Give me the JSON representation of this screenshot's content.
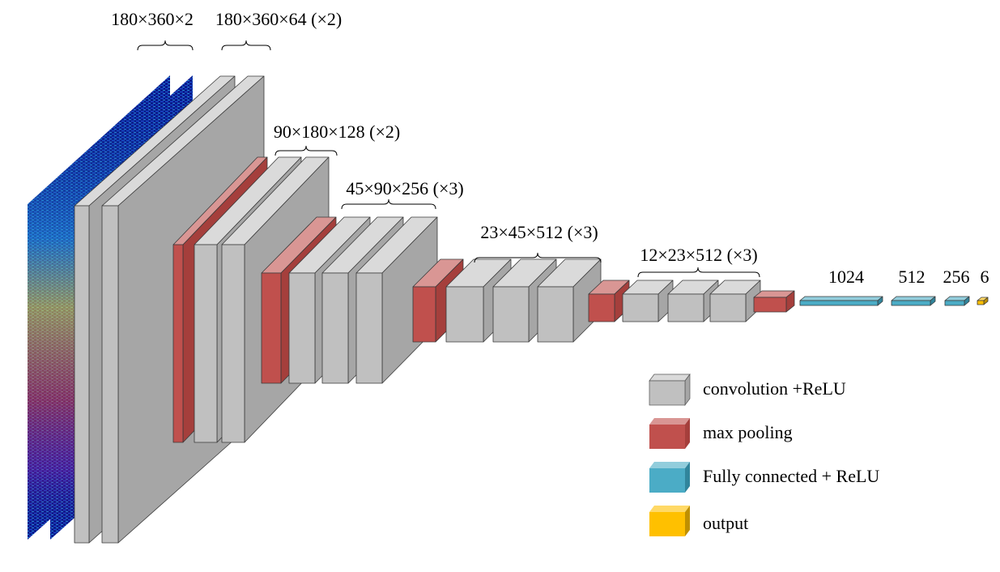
{
  "diagram": {
    "stage_labels": [
      {
        "id": "input",
        "text": "180×360×2"
      },
      {
        "id": "conv1",
        "text": "180×360×64 (×2)"
      },
      {
        "id": "conv2",
        "text": "90×180×128 (×2)"
      },
      {
        "id": "conv3",
        "text": "45×90×256 (×3)"
      },
      {
        "id": "conv4",
        "text": "23×45×512 (×3)"
      },
      {
        "id": "conv5",
        "text": "12×23×512 (×3)"
      }
    ],
    "fc_labels": [
      {
        "id": "fc1",
        "text": "1024"
      },
      {
        "id": "fc2",
        "text": "512"
      },
      {
        "id": "fc3",
        "text": "256"
      },
      {
        "id": "out",
        "text": "6"
      }
    ],
    "legend": [
      {
        "id": "conv",
        "label": "convolution +ReLU",
        "color": "#c0c0c0"
      },
      {
        "id": "pool",
        "label": "max pooling",
        "color": "#c0504d"
      },
      {
        "id": "fc",
        "label": "Fully connected + ReLU",
        "color": "#4bacc6"
      },
      {
        "id": "output",
        "label": "output",
        "color": "#ffc000"
      }
    ],
    "colors": {
      "conv_front": "#c0c0c0",
      "conv_side": "#a6a6a6",
      "conv_top": "#dadada",
      "pool_front": "#c0504d",
      "pool_side": "#a53f3c",
      "pool_top": "#d99694",
      "fc_front": "#4bacc6",
      "fc_top": "#92cddc",
      "output_front": "#ffc000",
      "output_top": "#ffd966",
      "input_base": "#0a1a8c"
    }
  }
}
